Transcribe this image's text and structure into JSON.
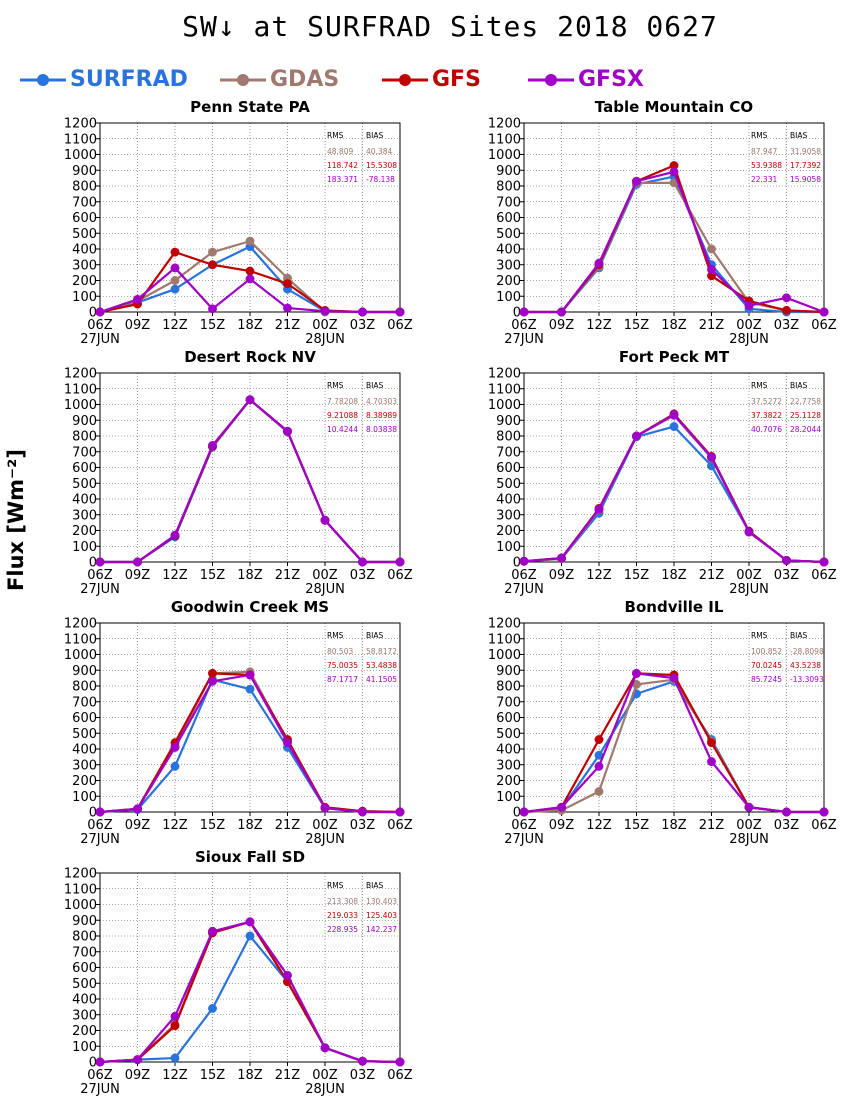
{
  "title": "SW↓ at SURFRAD Sites    2018 0627",
  "ylabel": "Flux [Wm⁻²]",
  "legend": [
    {
      "label": "SURFRAD",
      "color": "#2874dc"
    },
    {
      "label": "GDAS",
      "color": "#a0786e"
    },
    {
      "label": "GFS",
      "color": "#c00000"
    },
    {
      "label": "GFSX",
      "color": "#a000c8"
    }
  ],
  "stats_headers": {
    "rms": "RMS",
    "bias": "BIAS"
  },
  "chart_data": [
    {
      "type": "line",
      "title": "Penn State PA",
      "x": [
        "06Z",
        "09Z",
        "12Z",
        "15Z",
        "18Z",
        "21Z",
        "00Z",
        "03Z",
        "06Z"
      ],
      "x_dates": {
        "first": "27JUN",
        "after_midnight": "28JUN"
      },
      "ylim": [
        0,
        1200
      ],
      "yticks": [
        0,
        100,
        200,
        300,
        400,
        500,
        600,
        700,
        800,
        900,
        1000,
        1100,
        1200
      ],
      "grid": true,
      "series": [
        {
          "name": "SURFRAD",
          "values": [
            0,
            60,
            145,
            300,
            415,
            145,
            5,
            0,
            0
          ]
        },
        {
          "name": "GDAS",
          "values": [
            0,
            70,
            200,
            380,
            450,
            215,
            0,
            0,
            0
          ]
        },
        {
          "name": "GFS",
          "values": [
            0,
            50,
            380,
            300,
            260,
            180,
            10,
            0,
            0
          ]
        },
        {
          "name": "GFSX",
          "values": [
            0,
            80,
            280,
            20,
            210,
            25,
            5,
            0,
            0
          ]
        }
      ],
      "stats": [
        {
          "name": "GDAS",
          "rms": "48.809",
          "bias": "40.384"
        },
        {
          "name": "GFS",
          "rms": "118.742",
          "bias": "15.5308"
        },
        {
          "name": "GFSX",
          "rms": "183.371",
          "bias": "-78.138"
        }
      ]
    },
    {
      "type": "line",
      "title": "Table Mountain CO",
      "x": [
        "06Z",
        "09Z",
        "12Z",
        "15Z",
        "18Z",
        "21Z",
        "00Z",
        "03Z",
        "06Z"
      ],
      "x_dates": {
        "first": "27JUN",
        "after_midnight": "28JUN"
      },
      "ylim": [
        0,
        1200
      ],
      "yticks": [
        0,
        100,
        200,
        300,
        400,
        500,
        600,
        700,
        800,
        900,
        1000,
        1100,
        1200
      ],
      "grid": true,
      "series": [
        {
          "name": "SURFRAD",
          "values": [
            0,
            0,
            280,
            810,
            860,
            300,
            20,
            0,
            0
          ]
        },
        {
          "name": "GDAS",
          "values": [
            0,
            0,
            290,
            820,
            820,
            400,
            60,
            10,
            0
          ]
        },
        {
          "name": "GFS",
          "values": [
            0,
            0,
            300,
            830,
            930,
            230,
            70,
            10,
            0
          ]
        },
        {
          "name": "GFSX",
          "values": [
            0,
            0,
            310,
            830,
            890,
            270,
            40,
            90,
            0
          ]
        }
      ],
      "stats": [
        {
          "name": "GDAS",
          "rms": "87.947",
          "bias": "31.9058"
        },
        {
          "name": "GFS",
          "rms": "53.9388",
          "bias": "17.7392"
        },
        {
          "name": "GFSX",
          "rms": "22.331",
          "bias": "15.9058"
        }
      ]
    },
    {
      "type": "line",
      "title": "Desert Rock NV",
      "x": [
        "06Z",
        "09Z",
        "12Z",
        "15Z",
        "18Z",
        "21Z",
        "00Z",
        "03Z",
        "06Z"
      ],
      "x_dates": {
        "first": "27JUN",
        "after_midnight": "28JUN"
      },
      "ylim": [
        0,
        1200
      ],
      "yticks": [
        0,
        100,
        200,
        300,
        400,
        500,
        600,
        700,
        800,
        900,
        1000,
        1100,
        1200
      ],
      "grid": true,
      "series": [
        {
          "name": "SURFRAD",
          "values": [
            0,
            0,
            160,
            730,
            1030,
            830,
            265,
            0,
            0
          ]
        },
        {
          "name": "GDAS",
          "values": [
            0,
            0,
            170,
            735,
            1030,
            825,
            265,
            0,
            0
          ]
        },
        {
          "name": "GFS",
          "values": [
            0,
            0,
            165,
            735,
            1030,
            830,
            265,
            0,
            0
          ]
        },
        {
          "name": "GFSX",
          "values": [
            0,
            0,
            170,
            740,
            1030,
            830,
            265,
            0,
            0
          ]
        }
      ],
      "stats": [
        {
          "name": "GDAS",
          "rms": "7.78208",
          "bias": "4.70303"
        },
        {
          "name": "GFS",
          "rms": "9.21088",
          "bias": "8.38989"
        },
        {
          "name": "GFSX",
          "rms": "10.4244",
          "bias": "8.03838"
        }
      ]
    },
    {
      "type": "line",
      "title": "Fort Peck MT",
      "x": [
        "06Z",
        "09Z",
        "12Z",
        "15Z",
        "18Z",
        "21Z",
        "00Z",
        "03Z",
        "06Z"
      ],
      "x_dates": {
        "first": "27JUN",
        "after_midnight": "28JUN"
      },
      "ylim": [
        0,
        1200
      ],
      "yticks": [
        0,
        100,
        200,
        300,
        400,
        500,
        600,
        700,
        800,
        900,
        1000,
        1100,
        1200
      ],
      "grid": true,
      "series": [
        {
          "name": "SURFRAD",
          "values": [
            5,
            20,
            310,
            795,
            860,
            610,
            195,
            10,
            0
          ]
        },
        {
          "name": "GDAS",
          "values": [
            5,
            20,
            330,
            800,
            930,
            660,
            190,
            10,
            0
          ]
        },
        {
          "name": "GFS",
          "values": [
            5,
            25,
            340,
            800,
            940,
            670,
            195,
            10,
            0
          ]
        },
        {
          "name": "GFSX",
          "values": [
            5,
            25,
            335,
            800,
            935,
            665,
            190,
            10,
            0
          ]
        }
      ],
      "stats": [
        {
          "name": "GDAS",
          "rms": "37.5272",
          "bias": "22.7758"
        },
        {
          "name": "GFS",
          "rms": "37.3822",
          "bias": "25.1128"
        },
        {
          "name": "GFSX",
          "rms": "40.7076",
          "bias": "28.2044"
        }
      ]
    },
    {
      "type": "line",
      "title": "Goodwin Creek MS",
      "x": [
        "06Z",
        "09Z",
        "12Z",
        "15Z",
        "18Z",
        "21Z",
        "00Z",
        "03Z",
        "06Z"
      ],
      "x_dates": {
        "first": "27JUN",
        "after_midnight": "28JUN"
      },
      "ylim": [
        0,
        1200
      ],
      "yticks": [
        0,
        100,
        200,
        300,
        400,
        500,
        600,
        700,
        800,
        900,
        1000,
        1100,
        1200
      ],
      "grid": true,
      "series": [
        {
          "name": "SURFRAD",
          "values": [
            0,
            15,
            290,
            840,
            780,
            410,
            25,
            0,
            0
          ]
        },
        {
          "name": "GDAS",
          "values": [
            0,
            20,
            420,
            880,
            890,
            450,
            25,
            5,
            0
          ]
        },
        {
          "name": "GFS",
          "values": [
            0,
            20,
            440,
            880,
            870,
            460,
            30,
            5,
            0
          ]
        },
        {
          "name": "GFSX",
          "values": [
            0,
            20,
            410,
            830,
            870,
            440,
            25,
            0,
            0
          ]
        }
      ],
      "stats": [
        {
          "name": "GDAS",
          "rms": "80.503",
          "bias": "58.8172"
        },
        {
          "name": "GFS",
          "rms": "75.0035",
          "bias": "53.4838"
        },
        {
          "name": "GFSX",
          "rms": "87.1717",
          "bias": "41.1505"
        }
      ]
    },
    {
      "type": "line",
      "title": "Bondville IL",
      "x": [
        "06Z",
        "09Z",
        "12Z",
        "15Z",
        "18Z",
        "21Z",
        "00Z",
        "03Z",
        "06Z"
      ],
      "x_dates": {
        "first": "27JUN",
        "after_midnight": "28JUN"
      },
      "ylim": [
        0,
        1200
      ],
      "yticks": [
        0,
        100,
        200,
        300,
        400,
        500,
        600,
        700,
        800,
        900,
        1000,
        1100,
        1200
      ],
      "grid": true,
      "series": [
        {
          "name": "SURFRAD",
          "values": [
            0,
            20,
            360,
            750,
            830,
            460,
            30,
            0,
            0
          ]
        },
        {
          "name": "GDAS",
          "values": [
            0,
            10,
            130,
            810,
            840,
            450,
            30,
            0,
            0
          ]
        },
        {
          "name": "GFS",
          "values": [
            0,
            30,
            460,
            880,
            870,
            440,
            30,
            0,
            0
          ]
        },
        {
          "name": "GFSX",
          "values": [
            0,
            30,
            290,
            880,
            850,
            320,
            30,
            0,
            0
          ]
        }
      ],
      "stats": [
        {
          "name": "GDAS",
          "rms": "100.852",
          "bias": "-28.8098"
        },
        {
          "name": "GFS",
          "rms": "70.0245",
          "bias": "43.5238"
        },
        {
          "name": "GFSX",
          "rms": "85.7245",
          "bias": "-13.3093"
        }
      ]
    },
    {
      "type": "line",
      "title": "Sioux Fall SD",
      "x": [
        "06Z",
        "09Z",
        "12Z",
        "15Z",
        "18Z",
        "21Z",
        "00Z",
        "03Z",
        "06Z"
      ],
      "x_dates": {
        "first": "27JUN",
        "after_midnight": "28JUN"
      },
      "ylim": [
        0,
        1200
      ],
      "yticks": [
        0,
        100,
        200,
        300,
        400,
        500,
        600,
        700,
        800,
        900,
        1000,
        1100,
        1200
      ],
      "grid": true,
      "series": [
        {
          "name": "SURFRAD",
          "values": [
            0,
            15,
            25,
            340,
            800,
            510,
            90,
            5,
            0
          ]
        },
        {
          "name": "GDAS",
          "values": [
            0,
            15,
            240,
            820,
            890,
            510,
            90,
            5,
            0
          ]
        },
        {
          "name": "GFS",
          "values": [
            0,
            15,
            230,
            820,
            890,
            510,
            90,
            5,
            0
          ]
        },
        {
          "name": "GFSX",
          "values": [
            0,
            15,
            290,
            830,
            890,
            550,
            90,
            5,
            0
          ]
        }
      ],
      "stats": [
        {
          "name": "GDAS",
          "rms": "213.308",
          "bias": "130.403"
        },
        {
          "name": "GFS",
          "rms": "219.033",
          "bias": "125.403"
        },
        {
          "name": "GFSX",
          "rms": "228.935",
          "bias": "142.237"
        }
      ]
    }
  ]
}
